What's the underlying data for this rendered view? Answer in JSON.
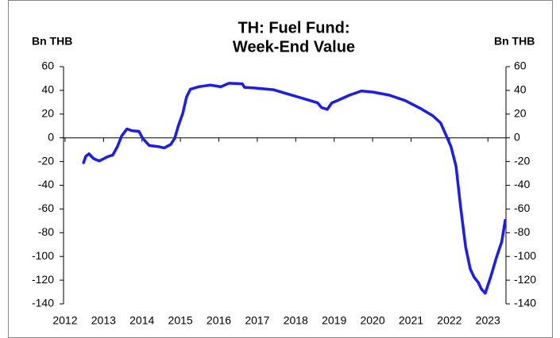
{
  "chart_data": {
    "type": "line",
    "title": "TH: Fuel Fund:",
    "subtitle": "Week-End Value",
    "ylabel": "Bn THB",
    "y2label": "Bn THB",
    "x": [
      2012.48,
      2012.54,
      2012.62,
      2012.74,
      2012.89,
      2013.1,
      2013.24,
      2013.36,
      2013.47,
      2013.61,
      2013.74,
      2013.92,
      2014.02,
      2014.19,
      2014.44,
      2014.58,
      2014.75,
      2014.85,
      2014.95,
      2015.06,
      2015.16,
      2015.26,
      2015.47,
      2015.78,
      2016.05,
      2016.26,
      2016.61,
      2016.67,
      2016.92,
      2017.43,
      2017.74,
      2018.16,
      2018.57,
      2018.67,
      2018.82,
      2018.94,
      2019.09,
      2019.4,
      2019.71,
      2020.02,
      2020.18,
      2020.43,
      2020.84,
      2021.26,
      2021.57,
      2021.77,
      2021.92,
      2022.04,
      2022.17,
      2022.29,
      2022.42,
      2022.54,
      2022.64,
      2022.75,
      2022.83,
      2022.93,
      2023.07,
      2023.22,
      2023.36,
      2023.45
    ],
    "series": [
      {
        "name": "Fuel Fund",
        "color": "#1a1aff",
        "values": [
          -21,
          -15.5,
          -13.5,
          -17.5,
          -19.5,
          -16,
          -14.5,
          -7.5,
          1.5,
          7.5,
          6,
          5.5,
          -0.5,
          -6.5,
          -7.5,
          -8.5,
          -5.5,
          -0.5,
          10.5,
          20.5,
          34.5,
          41,
          43,
          44.5,
          43,
          46,
          45.5,
          42.5,
          42,
          40.5,
          37.5,
          33.5,
          29.5,
          25.5,
          24,
          29.5,
          31.5,
          36,
          39.5,
          38.5,
          37.5,
          36,
          31.5,
          24.5,
          18.5,
          12.5,
          1.5,
          -7.5,
          -24,
          -58.5,
          -92,
          -110.5,
          -117.5,
          -122,
          -127.5,
          -131,
          -117.5,
          -101,
          -87.5,
          -69.5
        ]
      }
    ],
    "xlim": [
      2011.96,
      2023.47
    ],
    "xticks": [
      2012,
      2013,
      2014,
      2015,
      2016,
      2017,
      2018,
      2019,
      2020,
      2021,
      2022,
      2023
    ],
    "ylim": [
      -140,
      60
    ],
    "yticks": [
      -140,
      -120,
      -100,
      -80,
      -60,
      -40,
      -20,
      0,
      20,
      40,
      60
    ],
    "y2lim": [
      -140,
      60
    ],
    "y2ticks": [
      -140,
      -120,
      -100,
      -80,
      -60,
      -40,
      -20,
      0,
      20,
      40,
      60
    ],
    "grid": false
  }
}
